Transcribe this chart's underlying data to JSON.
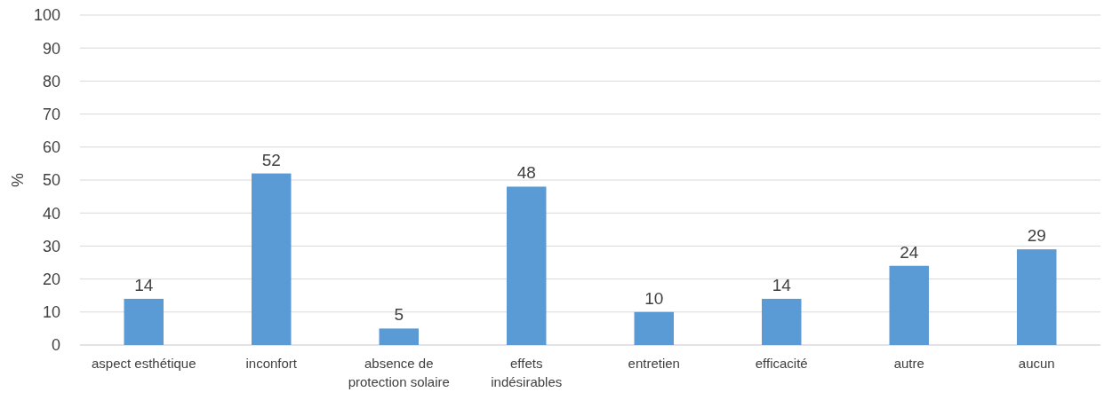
{
  "chart_data": {
    "type": "bar",
    "ylabel": "%",
    "categories": [
      "aspect esthétique",
      "inconfort",
      "absence de\nprotection solaire",
      "effets\nindésirables",
      "entretien",
      "efficacité",
      "autre",
      "aucun"
    ],
    "values": [
      14,
      52,
      5,
      48,
      10,
      14,
      24,
      29
    ],
    "color": "#5b9bd5",
    "ylim": [
      0,
      100
    ],
    "yticks": [
      0,
      10,
      20,
      30,
      40,
      50,
      60,
      70,
      80,
      90,
      100
    ],
    "grid": "y",
    "data_labels": true
  }
}
